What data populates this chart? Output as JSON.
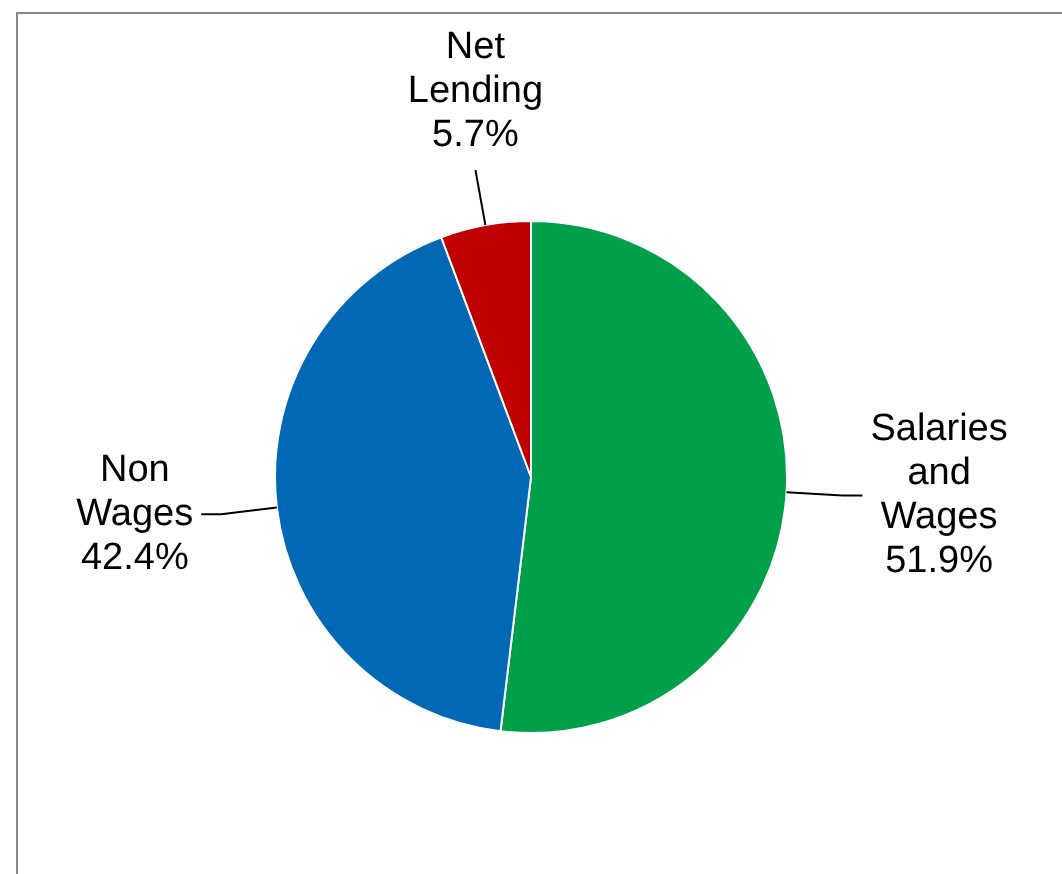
{
  "chart_data": {
    "type": "pie",
    "categories": [
      "Salaries and Wages",
      "Non Wages",
      "Net Lending"
    ],
    "values": [
      51.9,
      42.4,
      5.7
    ],
    "colors": [
      "#00a04a",
      "#0068b4",
      "#c00000"
    ],
    "value_labels": [
      "51.9%",
      "42.4%",
      "5.7%"
    ],
    "legend": false
  }
}
